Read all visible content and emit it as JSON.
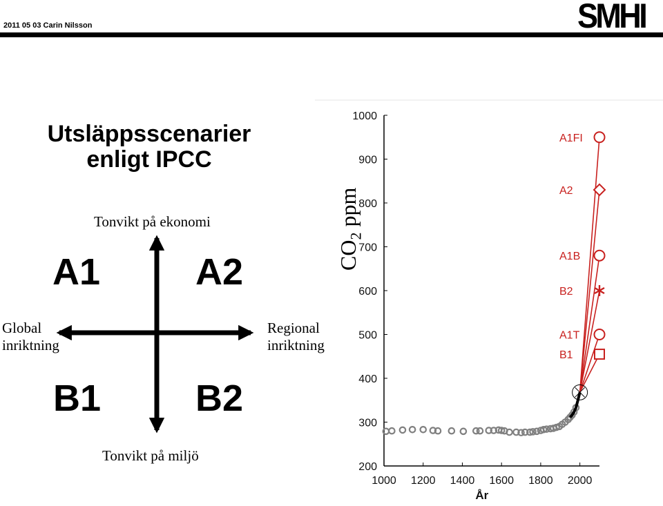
{
  "header": {
    "date_author": "2011 05 03 Carin Nilsson",
    "logo": "SMHI"
  },
  "slide": {
    "title_line1": "Utsläppsscenarier",
    "title_line2": "enligt IPCC",
    "axis_top": "Tonvikt på ekonomi",
    "axis_bottom": "Tonvikt på miljö",
    "axis_left_line1": "Global",
    "axis_left_line2": "inriktning",
    "axis_right_line1": "Regional",
    "axis_right_line2": "inriktning",
    "quadrants": {
      "top_left": "A1",
      "top_right": "A2",
      "bottom_left": "B1",
      "bottom_right": "B2"
    }
  },
  "chart_data": {
    "type": "scatter",
    "ylabel_main": "CO",
    "ylabel_sub": "2",
    "ylabel_unit": " ppm",
    "xlabel": "År",
    "xlim": [
      1000,
      2100
    ],
    "ylim": [
      200,
      1000
    ],
    "x_ticks": [
      1000,
      1200,
      1400,
      1600,
      1800,
      2000
    ],
    "y_ticks": [
      200,
      300,
      400,
      500,
      600,
      700,
      800,
      900,
      1000
    ],
    "colors": {
      "historical": "#808080",
      "scenario": "#c8201e",
      "axis": "#000000"
    },
    "historical": {
      "x": [
        1010,
        1040,
        1095,
        1145,
        1200,
        1250,
        1275,
        1345,
        1405,
        1470,
        1490,
        1535,
        1560,
        1585,
        1600,
        1615,
        1640,
        1675,
        1700,
        1720,
        1745,
        1760,
        1780,
        1800,
        1815,
        1830,
        1850,
        1865,
        1880,
        1895,
        1910,
        1925,
        1940,
        1950,
        1960,
        1970,
        1980
      ],
      "y": [
        279,
        280,
        282,
        283,
        283,
        281,
        280,
        280,
        279,
        280,
        280,
        281,
        281,
        282,
        281,
        280,
        277,
        277,
        276,
        277,
        277,
        278,
        279,
        281,
        283,
        284,
        285,
        286,
        288,
        290,
        295,
        300,
        306,
        311,
        316,
        323,
        333
      ]
    },
    "present": {
      "x": 2000,
      "y": 368
    },
    "scenarios": [
      {
        "name": "A1FI",
        "x": 2100,
        "y": 950,
        "marker": "circle"
      },
      {
        "name": "A2",
        "x": 2100,
        "y": 830,
        "marker": "diamond"
      },
      {
        "name": "A1B",
        "x": 2100,
        "y": 680,
        "marker": "circle"
      },
      {
        "name": "B2",
        "x": 2100,
        "y": 600,
        "marker": "asterisk"
      },
      {
        "name": "A1T",
        "x": 2100,
        "y": 500,
        "marker": "circle"
      },
      {
        "name": "B1",
        "x": 2100,
        "y": 455,
        "marker": "square"
      }
    ]
  }
}
